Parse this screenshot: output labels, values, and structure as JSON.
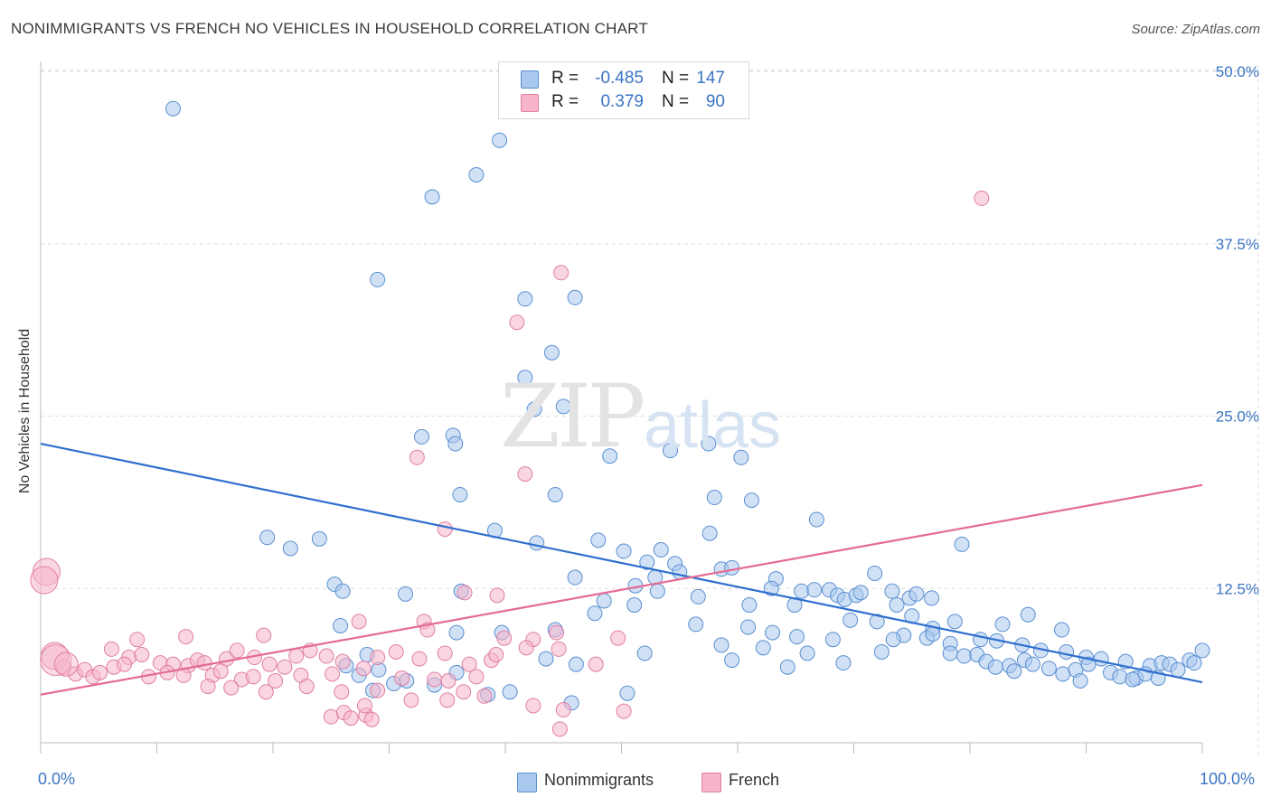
{
  "header": {
    "title": "NONIMMIGRANTS VS FRENCH NO VEHICLES IN HOUSEHOLD CORRELATION CHART",
    "source": "Source: ZipAtlas.com"
  },
  "watermark": {
    "part1": "ZIP",
    "part2": "atlas"
  },
  "legend": {
    "rows": [
      {
        "r_label": "R =",
        "r_value": "-0.485",
        "n_label": "N =",
        "n_value": "147",
        "color": "#a9c8ee"
      },
      {
        "r_label": "R =",
        "r_value": "0.379",
        "n_label": "N =",
        "n_value": "90",
        "color": "#f6b5ca"
      }
    ]
  },
  "bottom_legend": {
    "items": [
      "Nonimmigrants",
      "French"
    ]
  },
  "chart_data": {
    "type": "scatter",
    "title": "NONIMMIGRANTS VS FRENCH NO VEHICLES IN HOUSEHOLD CORRELATION CHART",
    "xlabel": "",
    "ylabel": "No Vehicles in Household",
    "xlim": [
      0,
      100
    ],
    "ylim": [
      0,
      51
    ],
    "x_tick_labels": [
      "0.0%",
      "100.0%"
    ],
    "y_ticks": [
      12.5,
      25.0,
      37.5,
      50.0
    ],
    "y_tick_labels": [
      "12.5%",
      "25.0%",
      "37.5%",
      "50.0%"
    ],
    "grid": true,
    "legend_position": "top-center",
    "series": [
      {
        "name": "Nonimmigrants",
        "color": "#a9c8ee",
        "stroke": "#5a8fd0",
        "trend": {
          "x": [
            0,
            100
          ],
          "y": [
            23.0,
            5.7
          ],
          "color": "#2f6fcf"
        },
        "points": [
          [
            11.4,
            47.3
          ],
          [
            39.5,
            45.0
          ],
          [
            37.5,
            42.5
          ],
          [
            33.7,
            40.9
          ],
          [
            29.0,
            34.9
          ],
          [
            41.7,
            33.5
          ],
          [
            46.0,
            33.6
          ],
          [
            44.0,
            29.6
          ],
          [
            41.7,
            27.8
          ],
          [
            45.0,
            25.7
          ],
          [
            42.5,
            25.5
          ],
          [
            32.8,
            23.5
          ],
          [
            35.5,
            23.6
          ],
          [
            54.2,
            22.5
          ],
          [
            60.3,
            22.0
          ],
          [
            57.5,
            23.0
          ],
          [
            49.0,
            22.1
          ],
          [
            35.7,
            23.0
          ],
          [
            44.3,
            19.3
          ],
          [
            36.1,
            19.3
          ],
          [
            58.0,
            19.1
          ],
          [
            61.2,
            18.9
          ],
          [
            66.8,
            17.5
          ],
          [
            19.5,
            16.2
          ],
          [
            24.0,
            16.1
          ],
          [
            39.1,
            16.7
          ],
          [
            42.7,
            15.8
          ],
          [
            48.0,
            16.0
          ],
          [
            57.6,
            16.5
          ],
          [
            21.5,
            15.4
          ],
          [
            50.2,
            15.2
          ],
          [
            53.4,
            15.3
          ],
          [
            79.3,
            15.7
          ],
          [
            52.2,
            14.4
          ],
          [
            54.6,
            14.3
          ],
          [
            55.0,
            13.7
          ],
          [
            58.6,
            13.9
          ],
          [
            59.5,
            14.0
          ],
          [
            46.0,
            13.3
          ],
          [
            52.9,
            13.3
          ],
          [
            63.3,
            13.2
          ],
          [
            71.8,
            13.6
          ],
          [
            25.3,
            12.8
          ],
          [
            26.0,
            12.3
          ],
          [
            31.4,
            12.1
          ],
          [
            36.2,
            12.3
          ],
          [
            51.2,
            12.7
          ],
          [
            53.1,
            12.3
          ],
          [
            62.9,
            12.5
          ],
          [
            65.5,
            12.3
          ],
          [
            66.6,
            12.4
          ],
          [
            67.9,
            12.4
          ],
          [
            68.6,
            12.0
          ],
          [
            69.2,
            11.7
          ],
          [
            70.2,
            12.0
          ],
          [
            70.6,
            12.2
          ],
          [
            73.3,
            12.3
          ],
          [
            74.8,
            11.8
          ],
          [
            75.4,
            12.1
          ],
          [
            76.7,
            11.8
          ],
          [
            75.0,
            10.5
          ],
          [
            48.5,
            11.6
          ],
          [
            51.1,
            11.3
          ],
          [
            56.6,
            11.9
          ],
          [
            61.0,
            11.3
          ],
          [
            64.9,
            11.3
          ],
          [
            47.7,
            10.7
          ],
          [
            73.7,
            11.3
          ],
          [
            69.7,
            10.2
          ],
          [
            72.0,
            10.1
          ],
          [
            78.7,
            10.1
          ],
          [
            85.0,
            10.6
          ],
          [
            25.8,
            9.8
          ],
          [
            35.8,
            9.3
          ],
          [
            39.7,
            9.3
          ],
          [
            44.3,
            9.5
          ],
          [
            56.4,
            9.9
          ],
          [
            60.9,
            9.7
          ],
          [
            63.0,
            9.3
          ],
          [
            65.1,
            9.0
          ],
          [
            74.3,
            9.1
          ],
          [
            76.8,
            9.6
          ],
          [
            82.8,
            9.9
          ],
          [
            87.9,
            9.5
          ],
          [
            68.2,
            8.8
          ],
          [
            73.4,
            8.8
          ],
          [
            76.3,
            8.9
          ],
          [
            76.8,
            9.2
          ],
          [
            78.3,
            8.5
          ],
          [
            80.9,
            8.8
          ],
          [
            82.3,
            8.7
          ],
          [
            84.5,
            8.4
          ],
          [
            86.1,
            8.0
          ],
          [
            88.3,
            7.9
          ],
          [
            90.0,
            7.5
          ],
          [
            91.3,
            7.4
          ],
          [
            93.4,
            7.2
          ],
          [
            95.5,
            6.9
          ],
          [
            96.5,
            7.1
          ],
          [
            97.2,
            7.0
          ],
          [
            98.9,
            7.3
          ],
          [
            100.0,
            8.0
          ],
          [
            58.6,
            8.4
          ],
          [
            62.2,
            8.2
          ],
          [
            66.0,
            7.8
          ],
          [
            72.4,
            7.9
          ],
          [
            78.3,
            7.8
          ],
          [
            79.5,
            7.6
          ],
          [
            80.6,
            7.7
          ],
          [
            81.4,
            7.2
          ],
          [
            82.2,
            6.8
          ],
          [
            83.4,
            6.9
          ],
          [
            84.7,
            7.3
          ],
          [
            85.4,
            7.0
          ],
          [
            86.8,
            6.7
          ],
          [
            88.0,
            6.3
          ],
          [
            89.1,
            6.6
          ],
          [
            90.2,
            7.0
          ],
          [
            92.1,
            6.4
          ],
          [
            92.9,
            6.1
          ],
          [
            94.3,
            6.0
          ],
          [
            95.1,
            6.3
          ],
          [
            96.2,
            6.0
          ],
          [
            97.9,
            6.6
          ],
          [
            99.3,
            7.1
          ],
          [
            26.3,
            6.9
          ],
          [
            27.4,
            6.2
          ],
          [
            28.1,
            7.7
          ],
          [
            29.1,
            6.6
          ],
          [
            30.4,
            5.6
          ],
          [
            31.5,
            5.8
          ],
          [
            35.8,
            6.4
          ],
          [
            43.5,
            7.4
          ],
          [
            46.1,
            7.0
          ],
          [
            52.0,
            7.8
          ],
          [
            59.5,
            7.3
          ],
          [
            64.3,
            6.8
          ],
          [
            69.1,
            7.1
          ],
          [
            28.6,
            5.1
          ],
          [
            33.9,
            5.5
          ],
          [
            38.5,
            4.8
          ],
          [
            40.4,
            5.0
          ],
          [
            45.7,
            4.2
          ],
          [
            50.5,
            4.9
          ],
          [
            83.8,
            6.5
          ],
          [
            89.5,
            5.8
          ],
          [
            94.0,
            5.9
          ]
        ]
      },
      {
        "name": "French",
        "color": "#f6b5ca",
        "stroke": "#e07fa2",
        "trend": {
          "x": [
            0,
            100
          ],
          "y": [
            4.8,
            20.0
          ],
          "color": "#e46b97"
        },
        "points": [
          [
            81.0,
            40.8
          ],
          [
            44.8,
            35.4
          ],
          [
            41.0,
            31.8
          ],
          [
            32.4,
            22.0
          ],
          [
            41.7,
            20.8
          ],
          [
            34.8,
            16.8
          ],
          [
            36.5,
            12.2
          ],
          [
            39.3,
            12.0
          ],
          [
            0.5,
            13.7
          ],
          [
            0.3,
            13.1
          ],
          [
            27.4,
            10.1
          ],
          [
            33.0,
            10.1
          ],
          [
            33.3,
            9.5
          ],
          [
            39.9,
            8.9
          ],
          [
            42.4,
            8.8
          ],
          [
            44.4,
            9.3
          ],
          [
            49.7,
            8.9
          ],
          [
            8.3,
            8.8
          ],
          [
            12.5,
            9.0
          ],
          [
            19.2,
            9.1
          ],
          [
            41.8,
            8.2
          ],
          [
            44.6,
            8.1
          ],
          [
            6.1,
            8.1
          ],
          [
            7.6,
            7.5
          ],
          [
            8.7,
            7.7
          ],
          [
            10.3,
            7.1
          ],
          [
            11.4,
            7.0
          ],
          [
            12.7,
            6.9
          ],
          [
            13.5,
            7.3
          ],
          [
            14.1,
            7.1
          ],
          [
            16.0,
            7.4
          ],
          [
            16.9,
            8.0
          ],
          [
            18.4,
            7.5
          ],
          [
            19.7,
            7.0
          ],
          [
            21.0,
            6.8
          ],
          [
            22.0,
            7.6
          ],
          [
            23.2,
            8.0
          ],
          [
            24.6,
            7.6
          ],
          [
            26.0,
            7.2
          ],
          [
            29.0,
            7.5
          ],
          [
            30.6,
            7.9
          ],
          [
            32.6,
            7.4
          ],
          [
            34.8,
            7.8
          ],
          [
            36.9,
            7.0
          ],
          [
            38.8,
            7.3
          ],
          [
            39.2,
            7.7
          ],
          [
            1.2,
            7.6
          ],
          [
            2.0,
            6.8
          ],
          [
            3.0,
            6.3
          ],
          [
            3.8,
            6.6
          ],
          [
            4.5,
            6.1
          ],
          [
            5.1,
            6.4
          ],
          [
            6.3,
            6.8
          ],
          [
            7.2,
            7.0
          ],
          [
            9.3,
            6.1
          ],
          [
            10.9,
            6.4
          ],
          [
            12.3,
            6.2
          ],
          [
            14.8,
            6.2
          ],
          [
            15.5,
            6.5
          ],
          [
            17.3,
            5.9
          ],
          [
            18.3,
            6.1
          ],
          [
            20.2,
            5.8
          ],
          [
            22.4,
            6.2
          ],
          [
            25.1,
            6.3
          ],
          [
            27.8,
            6.7
          ],
          [
            31.1,
            6.0
          ],
          [
            33.9,
            5.9
          ],
          [
            35.1,
            5.8
          ],
          [
            37.5,
            6.1
          ],
          [
            14.4,
            5.4
          ],
          [
            16.4,
            5.3
          ],
          [
            19.4,
            5.0
          ],
          [
            22.9,
            5.4
          ],
          [
            25.9,
            5.0
          ],
          [
            29.0,
            5.1
          ],
          [
            31.9,
            4.4
          ],
          [
            36.4,
            5.0
          ],
          [
            38.2,
            4.7
          ],
          [
            25.0,
            3.2
          ],
          [
            26.1,
            3.5
          ],
          [
            26.7,
            3.1
          ],
          [
            28.0,
            3.3
          ],
          [
            27.9,
            4.0
          ],
          [
            28.5,
            3.0
          ],
          [
            42.4,
            4.0
          ],
          [
            45.0,
            3.7
          ],
          [
            50.2,
            3.6
          ],
          [
            44.7,
            2.3
          ],
          [
            35.0,
            4.4
          ],
          [
            47.8,
            7.0
          ]
        ]
      }
    ]
  }
}
